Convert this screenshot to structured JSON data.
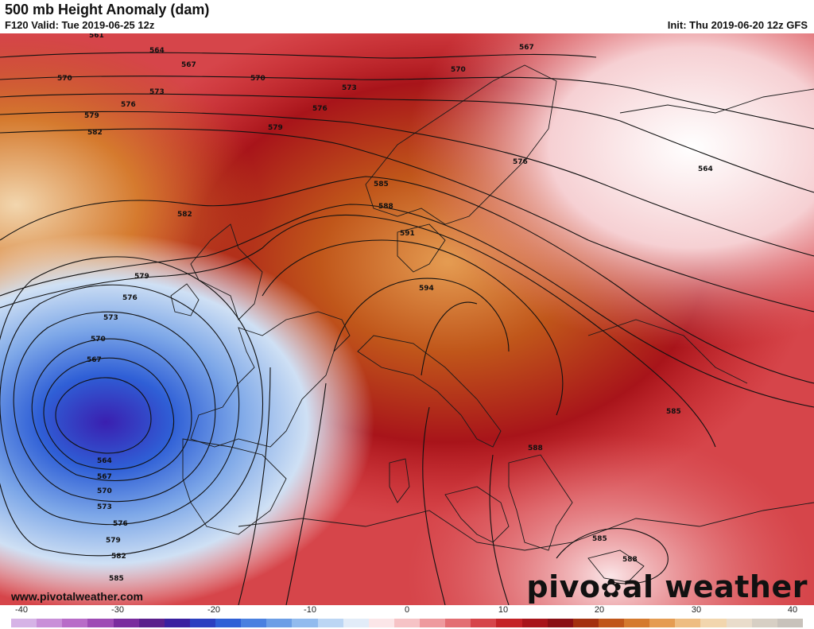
{
  "header": {
    "title": "500 mb Height Anomaly (dam)",
    "valid": "F120 Valid: Tue 2019-06-25 12z",
    "init": "Init: Thu 2019-06-20 12z GFS"
  },
  "footer": {
    "website": "www.pivotalweather.com",
    "brand_left": "pivo",
    "brand_right": "al weather"
  },
  "colorbar": {
    "ticks": [
      "-40",
      "-30",
      "-20",
      "-10",
      "0",
      "10",
      "20",
      "30",
      "40"
    ],
    "colors": [
      "#d6b3e6",
      "#c98fd8",
      "#b86cc8",
      "#9e4bb5",
      "#7a2c9e",
      "#5b1f8c",
      "#3a1fa0",
      "#2b3fc0",
      "#2f5fd6",
      "#4a80e0",
      "#6c9ee6",
      "#92bbee",
      "#bcd6f4",
      "#e2ecf8",
      "#fbe6e8",
      "#f6c3c6",
      "#ee9a9e",
      "#e36e73",
      "#d6454a",
      "#c42226",
      "#a8141a",
      "#8a0f14",
      "#a3300f",
      "#c0561a",
      "#d57a2e",
      "#e59c52",
      "#eebd82",
      "#f2d6ae",
      "#e9dccb",
      "#d7cfc4",
      "#c8c2bb"
    ]
  },
  "contour_labels": [
    "561",
    "564",
    "567",
    "570",
    "573",
    "576",
    "579",
    "582",
    "585",
    "588",
    "591",
    "594"
  ]
}
